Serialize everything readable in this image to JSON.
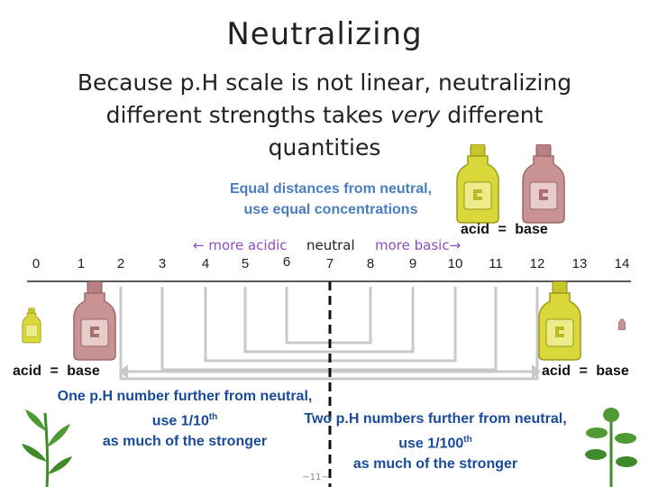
{
  "title": "Neutralizing",
  "subtitle": {
    "before": "Because p.H scale is not linear, neutralizing different strengths takes ",
    "emphasis": "very",
    "after": " different quantities"
  },
  "equal_note": {
    "line1": "Equal distances from neutral,",
    "line2": "use equal concentrations"
  },
  "direction_labels": {
    "acidic": "← more acidic",
    "neutral": "neutral",
    "basic": "more basic→"
  },
  "scale_numbers": [
    "0",
    "1",
    "2",
    "3",
    "4",
    "5",
    "6",
    "7",
    "8",
    "9",
    "10",
    "11",
    "12",
    "13",
    "14"
  ],
  "pair_top_right": {
    "acid": "acid",
    "equals": "=",
    "base": "base"
  },
  "pair_bottom_left": {
    "acid": "acid",
    "equals": "=",
    "base": "base"
  },
  "pair_bottom_right": {
    "acid": "acid",
    "equals": "=",
    "base": "base"
  },
  "note_one": {
    "line1": "One p.H number further from neutral,",
    "line2_prefix": "use 1/10",
    "line2_sup": "th",
    "line3": "as much of the stronger"
  },
  "note_two": {
    "line1": "Two p.H numbers further from neutral,",
    "line2_prefix": "use 1/100",
    "line2_sup": "th",
    "line3": "as much of the stronger"
  },
  "page_number": "~11~",
  "colors": {
    "acid_bottle": "#d8d83a",
    "base_bottle": "#c99393",
    "connector": "#c8c8c8",
    "neutral_line": "#111111",
    "note_text": "#1a4b98",
    "heading_blue": "#4a7dc0",
    "plant_green": "#3f8a2a"
  }
}
